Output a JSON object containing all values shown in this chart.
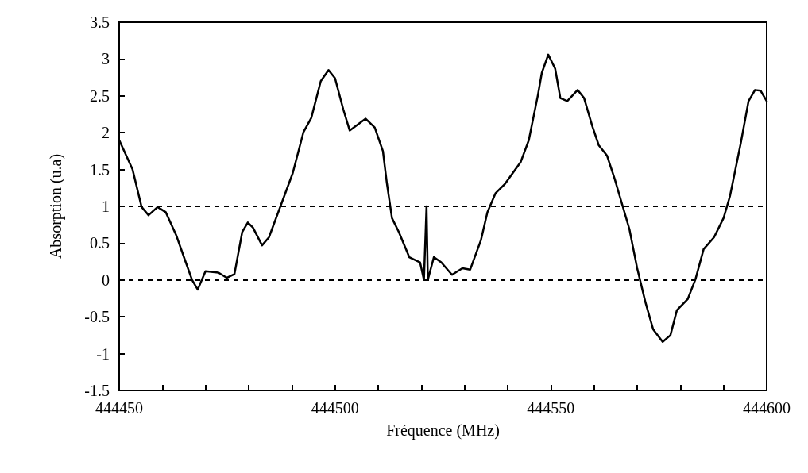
{
  "chart_data": {
    "type": "line",
    "xlabel": "Fréquence (MHz)",
    "ylabel": "Absorption (u.a)",
    "xlim": [
      444450,
      444600
    ],
    "xticks": [
      444450,
      {
        "value": 444460,
        "label": null
      },
      {
        "value": 444470,
        "label": null
      },
      {
        "value": 444480,
        "label": null
      },
      {
        "value": 444490,
        "label": null
      },
      444500,
      {
        "value": 444510,
        "label": null
      },
      {
        "value": 444520,
        "label": null
      },
      {
        "value": 444530,
        "label": null
      },
      {
        "value": 444540,
        "label": null
      },
      444550,
      {
        "value": 444560,
        "label": null
      },
      {
        "value": 444570,
        "label": null
      },
      {
        "value": 444580,
        "label": null
      },
      {
        "value": 444590,
        "label": null
      },
      444600
    ],
    "ylim": [
      -1.5,
      3.5
    ],
    "yticks": [
      -1.5,
      -1,
      -0.5,
      0,
      0.5,
      1,
      1.5,
      2,
      2.5,
      3,
      3.5
    ],
    "grid": false,
    "marker": "none",
    "line_style": "solid",
    "ref_lines": [
      {
        "axis": "y",
        "value": 0,
        "color": "#000000",
        "line_style": "dashed"
      },
      {
        "axis": "y",
        "value": 1,
        "color": "#000000",
        "line_style": "dashed"
      }
    ],
    "series": [
      {
        "color": "#000000",
        "x": [
          444450,
          444453.1,
          444455.2,
          444456.8,
          444458.9,
          444460.8,
          444463.2,
          444465,
          444466.9,
          444468.2,
          444470,
          444473,
          444474.9,
          444476.7,
          444478.5,
          444479.8,
          444481,
          444483.1,
          444484.7,
          444487.8,
          444490.2,
          444492.7,
          444494.5,
          444496.7,
          444498.5,
          444500,
          444501.9,
          444503.4,
          444507.1,
          444509.2,
          444511.1,
          444512,
          444513.2,
          444514.8,
          444517.2,
          444519.7,
          444520.6,
          444521.2,
          444521.5,
          444522.9,
          444524.6,
          444527.1,
          444529.5,
          444531.3,
          444533.8,
          444535.3,
          444537.2,
          444539.3,
          444543,
          444544.9,
          444547,
          444547.9,
          444549.4,
          444551,
          444552.2,
          444553.8,
          444556.2,
          444557.7,
          444559.6,
          444561.1,
          444563,
          444564.8,
          444566.3,
          444568.2,
          444570,
          444571.9,
          444573.7,
          444575.9,
          444577.7,
          444579.2,
          444581.7,
          444583.5,
          444585.4,
          444587.8,
          444590,
          444591.5,
          444594,
          444595.8,
          444597.3,
          444598.6,
          444600
        ],
        "values": [
          1.9,
          1.5,
          0.99,
          0.88,
          0.99,
          0.92,
          0.61,
          0.31,
          0,
          -0.13,
          0.12,
          0.1,
          0.03,
          0.08,
          0.65,
          0.78,
          0.71,
          0.47,
          0.58,
          1.07,
          1.45,
          2.01,
          2.2,
          2.7,
          2.85,
          2.74,
          2.32,
          2.03,
          2.19,
          2.07,
          1.75,
          1.32,
          0.84,
          0.65,
          0.31,
          0.24,
          0,
          1,
          0,
          0.31,
          0.24,
          0.07,
          0.16,
          0.14,
          0.54,
          0.92,
          1.18,
          1.3,
          1.6,
          1.9,
          2.51,
          2.81,
          3.06,
          2.87,
          2.47,
          2.43,
          2.58,
          2.47,
          2.09,
          1.83,
          1.69,
          1.37,
          1.07,
          0.69,
          0.16,
          -0.3,
          -0.67,
          -0.84,
          -0.75,
          -0.41,
          -0.26,
          0.01,
          0.42,
          0.58,
          0.84,
          1.14,
          1.86,
          2.43,
          2.58,
          2.57,
          2.43
        ]
      }
    ]
  }
}
